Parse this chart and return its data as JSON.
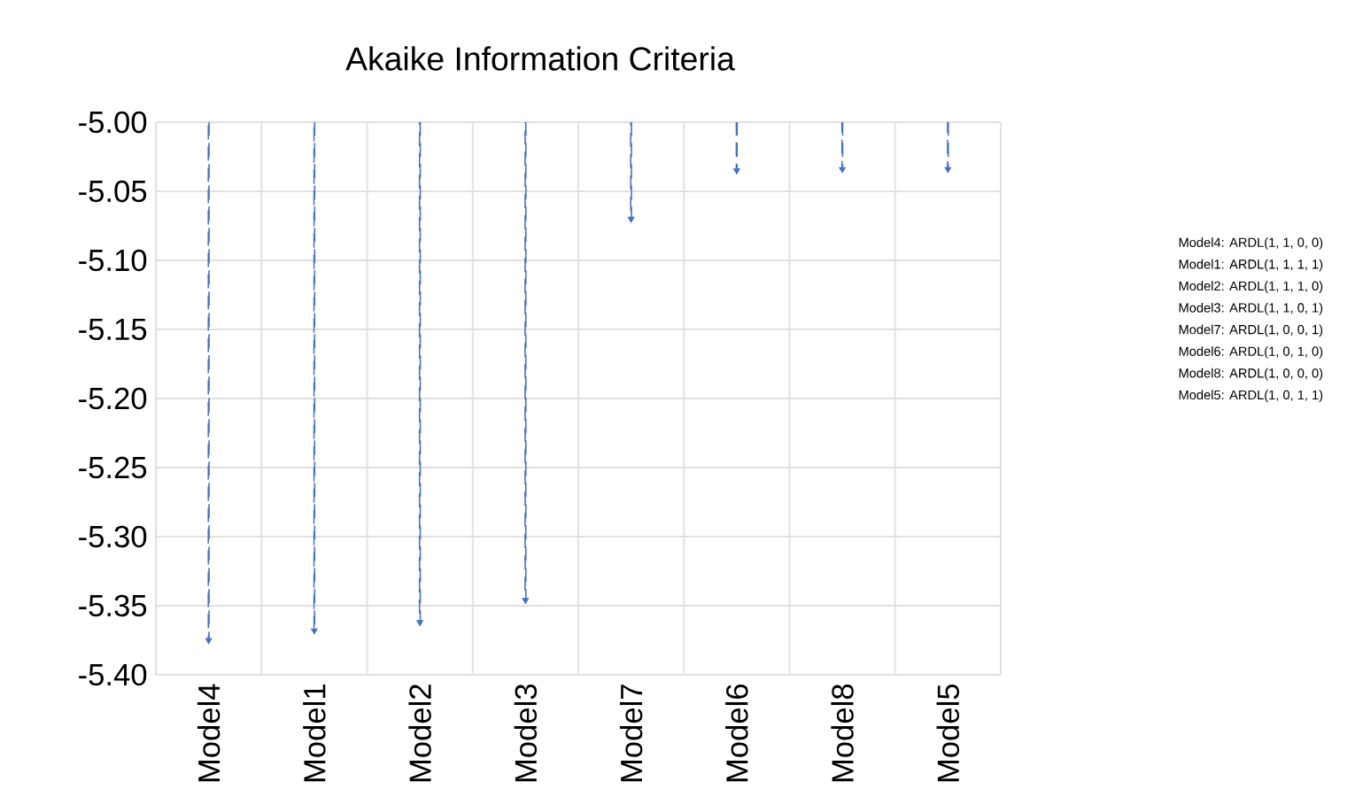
{
  "chart_data": {
    "type": "lollipop",
    "title": "Akaike Information Criteria",
    "categories": [
      "Model4",
      "Model1",
      "Model2",
      "Model3",
      "Model7",
      "Model6",
      "Model8",
      "Model5"
    ],
    "values": [
      -5.375,
      -5.368,
      -5.362,
      -5.346,
      -5.07,
      -5.035,
      -5.034,
      -5.034
    ],
    "marker": "triangle",
    "color": "#4472c4",
    "ylim": [
      -5.4,
      -5.0
    ],
    "yticks": [
      {
        "value": -5.4,
        "label": "-5.40"
      },
      {
        "value": -5.35,
        "label": "-5.35"
      },
      {
        "value": -5.3,
        "label": "-5.30"
      },
      {
        "value": -5.25,
        "label": "-5.25"
      },
      {
        "value": -5.2,
        "label": "-5.20"
      },
      {
        "value": -5.15,
        "label": "-5.15"
      },
      {
        "value": -5.1,
        "label": "-5.10"
      },
      {
        "value": -5.05,
        "label": "-5.05"
      },
      {
        "value": -5.0,
        "label": "-5.00"
      }
    ],
    "grid": true,
    "line_style": "dashed",
    "annotations": [
      "Model4: ARDL(1, 1, 0, 0)",
      "Model1: ARDL(1, 1, 1, 1)",
      "Model2: ARDL(1, 1, 1, 0)",
      "Model3: ARDL(1, 1, 0, 1)",
      "Model7: ARDL(1, 0, 0, 1)",
      "Model6: ARDL(1, 0, 1, 0)",
      "Model8: ARDL(1, 0, 0, 0)",
      "Model5: ARDL(1, 0, 1, 1)"
    ]
  }
}
